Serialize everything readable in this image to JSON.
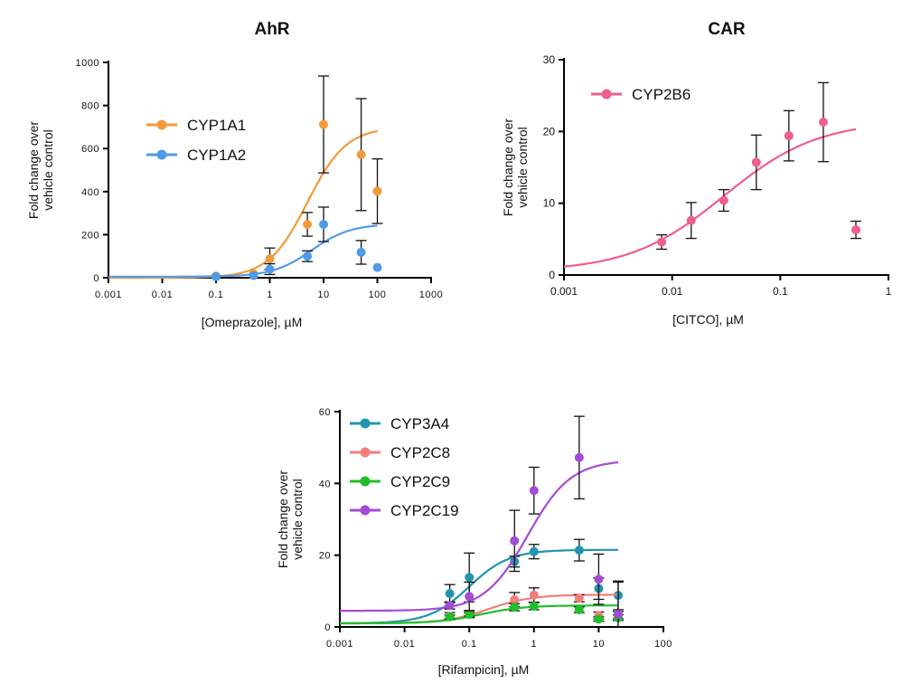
{
  "chart_data": [
    {
      "type": "scatter",
      "title": "AhR",
      "xlabel": "[Omeprazole], µM",
      "ylabel_lines": [
        "Fold change over",
        "vehicle control"
      ],
      "xscale": "log",
      "xlim": [
        0.001,
        1000
      ],
      "ylim": [
        0,
        1000
      ],
      "xticks": [
        0.001,
        0.01,
        0.1,
        1,
        10,
        100,
        1000
      ],
      "xtick_labels": [
        "0.001",
        "0.01",
        "0.1",
        "1",
        "10",
        "100",
        "1000"
      ],
      "yticks": [
        0,
        200,
        400,
        600,
        800,
        1000
      ],
      "ytick_labels": [
        "0",
        "200",
        "400",
        "600",
        "800",
        "1000"
      ],
      "legend_position": "top-left",
      "series": [
        {
          "name": "CYP1A1",
          "color": "#F29A3B",
          "x": [
            0.1,
            0.5,
            1,
            5,
            10,
            50,
            100
          ],
          "y": [
            8,
            18,
            88,
            248,
            712,
            572,
            402
          ],
          "err": [
            0,
            0,
            50,
            55,
            225,
            260,
            150
          ],
          "fit": {
            "bottom": 0,
            "top": 700,
            "ec50": 5,
            "hill": 1.2,
            "xmin": 0.001,
            "xmax": 100
          }
        },
        {
          "name": "CYP1A2",
          "color": "#4F9BE8",
          "x": [
            0.1,
            0.5,
            1,
            5,
            10,
            50,
            100
          ],
          "y": [
            5,
            10,
            40,
            100,
            248,
            118,
            48
          ],
          "err": [
            0,
            0,
            25,
            25,
            80,
            55,
            0
          ],
          "fit": {
            "bottom": 5,
            "top": 250,
            "ec50": 6,
            "hill": 1.2,
            "xmin": 0.001,
            "xmax": 100
          }
        }
      ]
    },
    {
      "type": "scatter",
      "title": "CAR",
      "xlabel": "[CITCO], µM",
      "ylabel_lines": [
        "Fold change over",
        "vehicle control"
      ],
      "xscale": "log",
      "xlim": [
        0.001,
        1
      ],
      "ylim": [
        0,
        30
      ],
      "xticks": [
        0.001,
        0.01,
        0.1,
        1
      ],
      "xtick_labels": [
        "0.001",
        "0.01",
        "0.1",
        "1"
      ],
      "yticks": [
        0,
        10,
        20,
        30
      ],
      "ytick_labels": [
        "0",
        "10",
        "20",
        "30"
      ],
      "legend_position": "top-left",
      "series": [
        {
          "name": "CYP2B6",
          "color": "#EE5E8E",
          "x": [
            0.008,
            0.015,
            0.03,
            0.06,
            0.12,
            0.25,
            0.5
          ],
          "y": [
            4.6,
            7.6,
            10.4,
            15.7,
            19.4,
            21.3,
            6.3
          ],
          "err": [
            1.0,
            2.5,
            1.5,
            3.8,
            3.5,
            5.5,
            1.2
          ],
          "fit": {
            "bottom": 0.5,
            "top": 21.5,
            "ec50": 0.03,
            "hill": 1.0,
            "xmin": 0.001,
            "xmax": 0.5
          }
        }
      ]
    },
    {
      "type": "scatter",
      "title": "",
      "xlabel": "[Rifampicin], µM",
      "ylabel_lines": [
        "Fold change over",
        "vehicle control"
      ],
      "xscale": "log",
      "xlim": [
        0.001,
        100
      ],
      "ylim": [
        0,
        60
      ],
      "xticks": [
        0.001,
        0.01,
        0.1,
        1,
        10,
        100
      ],
      "xtick_labels": [
        "0.001",
        "0.01",
        "0.1",
        "1",
        "10",
        "100"
      ],
      "yticks": [
        0,
        20,
        40,
        60
      ],
      "ytick_labels": [
        "0",
        "20",
        "40",
        "60"
      ],
      "legend_position": "top-left",
      "series": [
        {
          "name": "CYP3A4",
          "color": "#1F95B0",
          "x": [
            0.05,
            0.1,
            0.5,
            1,
            5,
            10,
            20
          ],
          "y": [
            9.3,
            13.8,
            18.2,
            21.0,
            21.4,
            10.7,
            8.8
          ],
          "err": [
            2.5,
            6.8,
            1.5,
            2.0,
            3.0,
            3.0,
            4.0
          ],
          "fit": {
            "bottom": 1.0,
            "top": 21.5,
            "ec50": 0.1,
            "hill": 1.4,
            "xmin": 0.001,
            "xmax": 20
          }
        },
        {
          "name": "CYP2C8",
          "color": "#F47E7A",
          "x": [
            0.05,
            0.1,
            0.5,
            1,
            5,
            10,
            20
          ],
          "y": [
            3.0,
            3.6,
            7.6,
            8.9,
            8.0,
            3.2,
            3.3
          ],
          "err": [
            1.0,
            1.0,
            2.0,
            2.0,
            1.0,
            1.0,
            1.0
          ],
          "fit": {
            "bottom": 1.0,
            "top": 9.0,
            "ec50": 0.2,
            "hill": 1.3,
            "xmin": 0.001,
            "xmax": 20
          }
        },
        {
          "name": "CYP2C9",
          "color": "#20BF2A",
          "x": [
            0.05,
            0.1,
            0.5,
            1,
            5,
            10,
            20
          ],
          "y": [
            2.8,
            3.5,
            5.5,
            5.8,
            4.8,
            2.2,
            2.6
          ],
          "err": [
            0.5,
            0.5,
            1.0,
            1.0,
            0.8,
            0.6,
            0.8
          ],
          "fit": {
            "bottom": 1.0,
            "top": 6.0,
            "ec50": 0.15,
            "hill": 1.3,
            "xmin": 0.001,
            "xmax": 20
          }
        },
        {
          "name": "CYP2C19",
          "color": "#A44BD8",
          "x": [
            0.05,
            0.1,
            0.5,
            1,
            5,
            10,
            20
          ],
          "y": [
            6.0,
            8.5,
            24.0,
            38.0,
            47.2,
            13.3,
            3.5
          ],
          "err": [
            1.0,
            4.0,
            8.5,
            6.5,
            11.5,
            7.0,
            9.0
          ],
          "fit": {
            "bottom": 4.5,
            "top": 46.5,
            "ec50": 0.8,
            "hill": 1.3,
            "xmin": 0.001,
            "xmax": 20
          }
        }
      ]
    }
  ]
}
